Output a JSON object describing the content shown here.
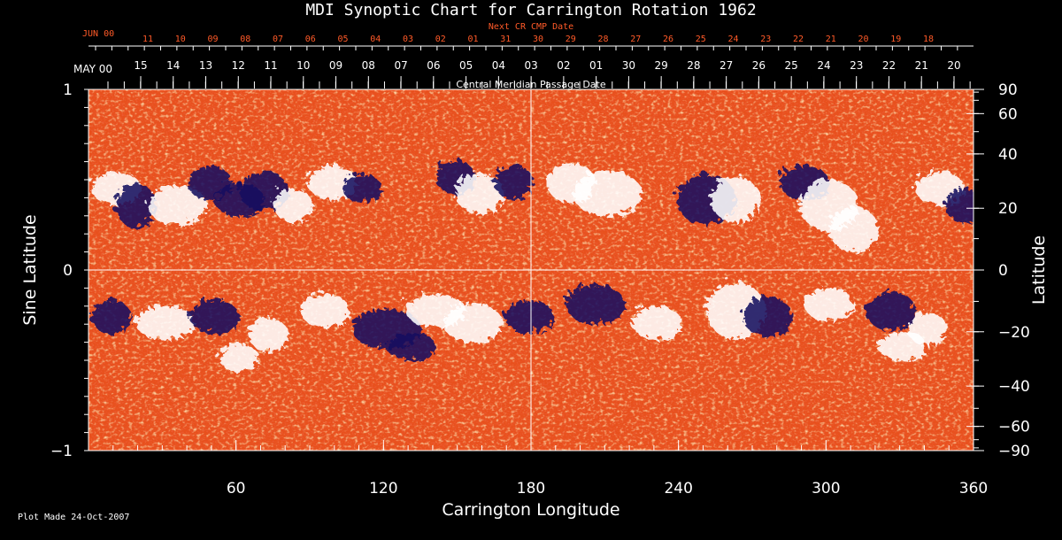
{
  "chart_data": {
    "type": "heatmap",
    "title": "MDI Synoptic Chart for Carrington Rotation 1962",
    "top_axis_label": "Next CR CMP Date",
    "top_axis_start_month": "JUN 00",
    "top_axis_ticks": [
      "11",
      "10",
      "09",
      "08",
      "07",
      "06",
      "05",
      "04",
      "03",
      "02",
      "01",
      "31",
      "30",
      "29",
      "28",
      "27",
      "26",
      "25",
      "24",
      "23",
      "22",
      "21",
      "20",
      "19",
      "18"
    ],
    "date_axis_start_month": "MAY 00",
    "date_axis_ticks": [
      "15",
      "14",
      "13",
      "12",
      "11",
      "10",
      "09",
      "08",
      "07",
      "06",
      "05",
      "04",
      "03",
      "02",
      "01",
      "30",
      "29",
      "28",
      "27",
      "26",
      "25",
      "24",
      "23",
      "22",
      "21",
      "20"
    ],
    "date_axis_label": "Central Meridian Passage Date",
    "xlabel": "Carrington Longitude",
    "xlim": [
      0,
      360
    ],
    "x_ticks": [
      60,
      120,
      180,
      240,
      300,
      360
    ],
    "ylabel_left": "Sine Latitude",
    "ylim": [
      -1,
      1
    ],
    "y_left_ticks": [
      "1",
      "0",
      "−1"
    ],
    "ylabel_right": "Latitude",
    "y_right_ticks": [
      90,
      60,
      40,
      20,
      0,
      -20,
      -40,
      -60,
      -90
    ],
    "grid": "crosshair at longitude 180 and sine latitude 0",
    "colors": {
      "background": "#000000",
      "map_base": "#e8501c",
      "positive_flux": "#ffffff",
      "negative_flux": "#141060",
      "date_ticks": "#ff5a28",
      "text": "#ffffff"
    }
  },
  "footer": {
    "plot_made": "Plot Made 24-Oct-2007"
  }
}
